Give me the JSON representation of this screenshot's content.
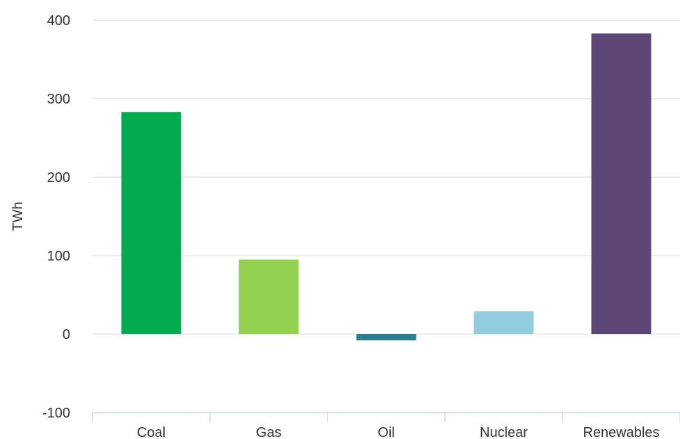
{
  "chart_data": {
    "type": "bar",
    "title": "",
    "xlabel": "",
    "ylabel": "TWh",
    "categories": [
      "Coal",
      "Gas",
      "Oil",
      "Nuclear",
      "Renewables"
    ],
    "values": [
      283,
      95,
      -8,
      29,
      383
    ],
    "colors": [
      "#02ab4d",
      "#93d150",
      "#2a7f91",
      "#92cddf",
      "#5d4777"
    ],
    "ylim": [
      -100,
      400
    ],
    "yticks": [
      -100,
      0,
      100,
      200,
      300,
      400
    ],
    "grid": true,
    "legend": "none"
  }
}
